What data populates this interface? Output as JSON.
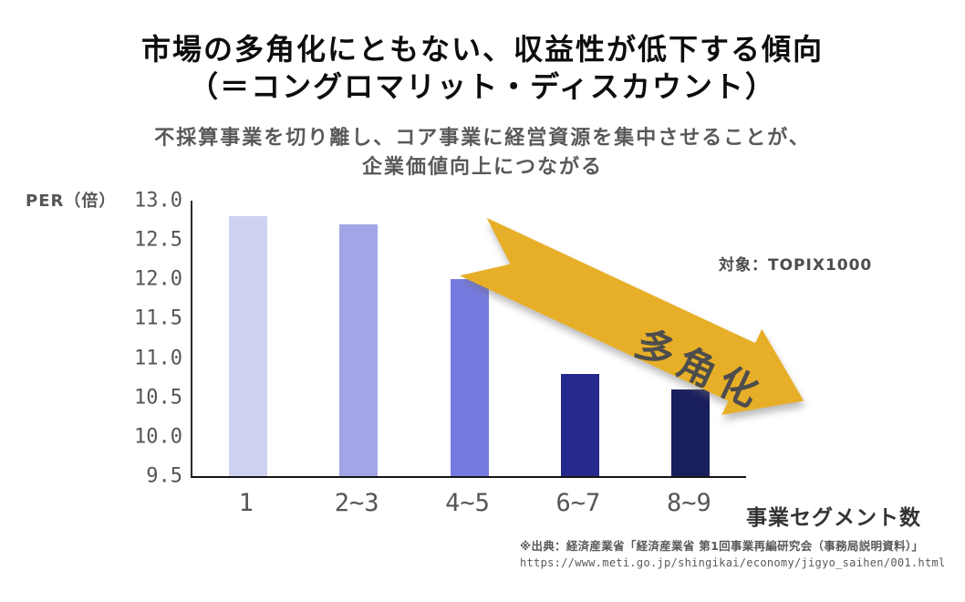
{
  "title": {
    "line1": "市場の多角化にともない、収益性が低下する傾向",
    "line2": "（＝コングロマリット・ディスカウント）"
  },
  "subtitle": {
    "line1": "不採算事業を切り離し、コア事業に経営資源を集中させることが、",
    "line2": "企業価値向上につながる"
  },
  "annotations": {
    "target": "対象：TOPIX1000",
    "arrow_label": "多角化"
  },
  "axis": {
    "y_label": "PER（倍）",
    "x_label": "事業セグメント数"
  },
  "source": {
    "line1": "※出典：経済産業省「経済産業省 第1回事業再編研究会（事務局説明資料）」",
    "line2": "https://www.meti.go.jp/shingikai/economy/jigyo_saihen/001.html"
  },
  "chart_data": {
    "type": "bar",
    "categories": [
      "1",
      "2~3",
      "4~5",
      "6~7",
      "8~9"
    ],
    "values": [
      12.8,
      12.7,
      12.0,
      10.8,
      10.6
    ],
    "bar_colors": [
      "#cfd1f0",
      "#a2a5e6",
      "#767be0",
      "#262a8c",
      "#191e5c"
    ],
    "title": "",
    "xlabel": "事業セグメント数",
    "ylabel": "PER（倍）",
    "ylim": [
      9.5,
      13.0
    ],
    "y_ticks": [
      13.0,
      12.5,
      12.0,
      11.5,
      11.0,
      10.5,
      10.0,
      9.5
    ],
    "grid": false,
    "legend": "none"
  },
  "colors": {
    "arrow_fill": "#e7af28",
    "arrow_text": "#4d4d4d",
    "bar_axis": "#1a1a1a",
    "gray_text": "#595959"
  }
}
